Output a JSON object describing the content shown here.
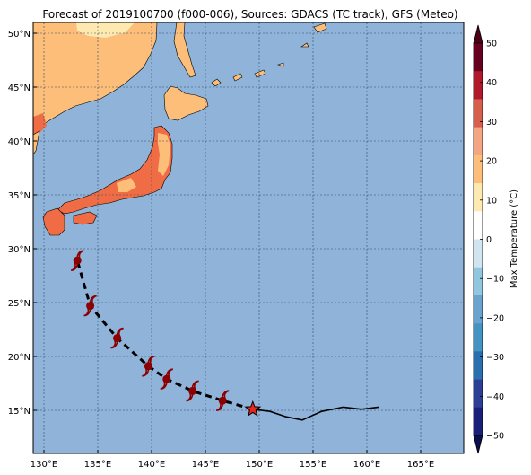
{
  "title": "Forecast of 2019100700 (f000-006), Sources: GDACS (TC track), GFS (Meteo)",
  "map": {
    "lon_range": [
      129,
      169
    ],
    "lat_range": [
      11,
      51
    ],
    "lon_ticks": [
      {
        "value": 130,
        "label": "130°E"
      },
      {
        "value": 135,
        "label": "135°E"
      },
      {
        "value": 140,
        "label": "140°E"
      },
      {
        "value": 145,
        "label": "145°E"
      },
      {
        "value": 150,
        "label": "150°E"
      },
      {
        "value": 155,
        "label": "155°E"
      },
      {
        "value": 160,
        "label": "160°E"
      },
      {
        "value": 165,
        "label": "165°E"
      }
    ],
    "lat_ticks": [
      {
        "value": 15,
        "label": "15°N"
      },
      {
        "value": 20,
        "label": "20°N"
      },
      {
        "value": 25,
        "label": "25°N"
      },
      {
        "value": 30,
        "label": "30°N"
      },
      {
        "value": 35,
        "label": "35°N"
      },
      {
        "value": 40,
        "label": "40°N"
      },
      {
        "value": 45,
        "label": "45°N"
      },
      {
        "value": 50,
        "label": "50°N"
      }
    ],
    "grid": true,
    "ocean_color": "#8fb3d9",
    "land_colors": {
      "t10_20": "#fdbe7a",
      "t20_30": "#ef6c45",
      "t0_10": "#fee9b0"
    }
  },
  "track": {
    "forecast": [
      {
        "lon": 149.4,
        "lat": 15.1
      },
      {
        "lon": 146.6,
        "lat": 15.9
      },
      {
        "lon": 143.8,
        "lat": 16.8
      },
      {
        "lon": 141.4,
        "lat": 17.9
      },
      {
        "lon": 139.7,
        "lat": 19.1
      },
      {
        "lon": 136.8,
        "lat": 21.7
      },
      {
        "lon": 134.3,
        "lat": 24.7
      },
      {
        "lon": 133.1,
        "lat": 28.9
      }
    ],
    "past": [
      {
        "lon": 149.4,
        "lat": 15.1
      },
      {
        "lon": 151.0,
        "lat": 14.9
      },
      {
        "lon": 152.5,
        "lat": 14.4
      },
      {
        "lon": 154.0,
        "lat": 14.1
      },
      {
        "lon": 155.8,
        "lat": 14.9
      },
      {
        "lon": 157.8,
        "lat": 15.3
      },
      {
        "lon": 159.5,
        "lat": 15.1
      },
      {
        "lon": 161.1,
        "lat": 15.3
      }
    ],
    "current": {
      "lon": 149.4,
      "lat": 15.1
    },
    "cyclone_symbol_color": "#8b0000",
    "current_marker_color": "#e8271e"
  },
  "colorbar": {
    "label": "Max Temperature (°C)",
    "ticks": [
      "50",
      "40",
      "30",
      "20",
      "10",
      "0",
      "−10",
      "−20",
      "−30",
      "−40",
      "−50"
    ],
    "colors_top_to_bottom": [
      "#67001f",
      "#b2182b",
      "#d6604d",
      "#f4a582",
      "#fdbe7a",
      "#fee9b0",
      "#ffffff",
      "#d1e5f0",
      "#92c5de",
      "#6aa3cf",
      "#4393c3",
      "#2a6fb0",
      "#2c3e95",
      "#1a1f7a"
    ],
    "extend_top_color": "#4d0014",
    "extend_bottom_color": "#0b0f4a"
  }
}
